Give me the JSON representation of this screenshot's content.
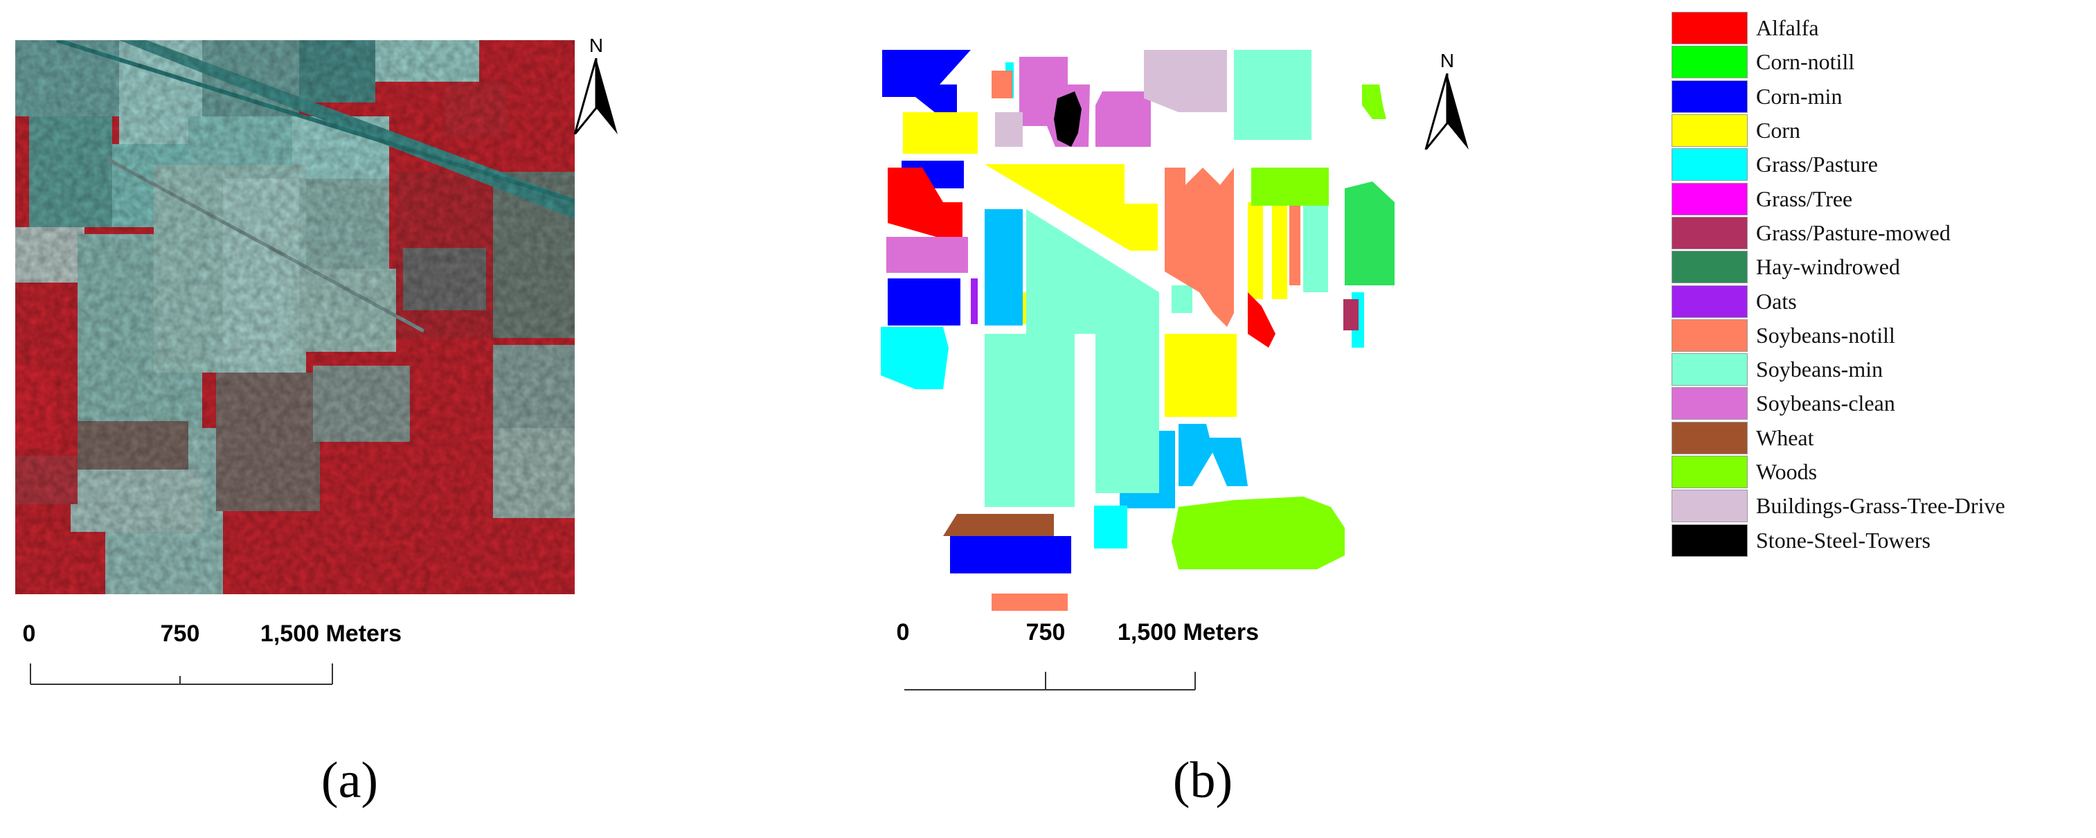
{
  "panel_a": {
    "caption": "(a)",
    "north_label": "N",
    "scale_labels": [
      "0",
      "750",
      "1,500 Meters"
    ]
  },
  "panel_b": {
    "caption": "(b)",
    "north_label": "N",
    "scale_labels": [
      "0",
      "750",
      "1,500 Meters"
    ]
  },
  "legend": {
    "items": [
      {
        "label": "Alfalfa",
        "color": "#ff0000"
      },
      {
        "label": "Corn-notill",
        "color": "#00ff00"
      },
      {
        "label": "Corn-min",
        "color": "#0000ff"
      },
      {
        "label": "Corn",
        "color": "#ffff00"
      },
      {
        "label": "Grass/Pasture",
        "color": "#00ffff"
      },
      {
        "label": "Grass/Tree",
        "color": "#ff00ff"
      },
      {
        "label": "Grass/Pasture-mowed",
        "color": "#b03060"
      },
      {
        "label": "Hay-windrowed",
        "color": "#2e8b57"
      },
      {
        "label": "Oats",
        "color": "#a020f0"
      },
      {
        "label": "Soybeans-notill",
        "color": "#ff8060"
      },
      {
        "label": "Soybeans-min",
        "color": "#7fffd4"
      },
      {
        "label": "Soybeans-clean",
        "color": "#da70d6"
      },
      {
        "label": "Wheat",
        "color": "#a0522d"
      },
      {
        "label": "Woods",
        "color": "#7fff00"
      },
      {
        "label": "Buildings-Grass-Tree-Drive",
        "color": "#d8bfd8"
      },
      {
        "label": "Stone-Steel-Towers",
        "color": "#000000"
      }
    ]
  }
}
